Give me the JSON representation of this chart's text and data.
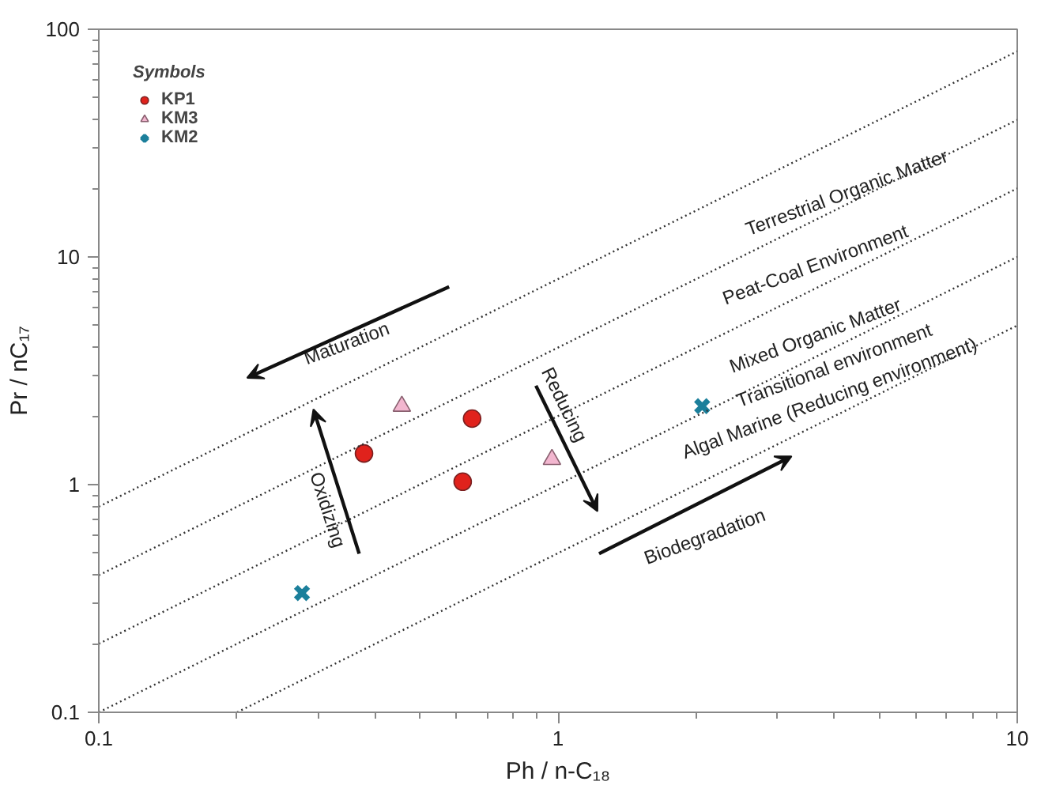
{
  "chart_data": {
    "type": "scatter",
    "xlabel": "Ph / n-C₁₈",
    "ylabel": "Pr / nC₁₇",
    "legend_title": "Symbols",
    "log": "xy",
    "grid": false,
    "legend": "top left",
    "xlim": [
      0.1,
      10
    ],
    "ylim": [
      0.1,
      100
    ],
    "xticks": [
      0.1,
      1,
      10
    ],
    "yticks": [
      0.1,
      1,
      10,
      100
    ],
    "series": [
      {
        "name": "KP1",
        "marker": "circle",
        "color": "#e0221c",
        "x": [
          0.378,
          0.65,
          0.62
        ],
        "values": [
          1.37,
          1.95,
          1.03
        ]
      },
      {
        "name": "KM3",
        "marker": "triangle",
        "color": "#f2b6cf",
        "x": [
          0.457,
          0.97
        ],
        "values": [
          2.21,
          1.29
        ]
      },
      {
        "name": "KM2",
        "marker": "cross",
        "color": "#1b7f9b",
        "x": [
          0.277,
          2.06
        ],
        "values": [
          0.334,
          2.21
        ]
      },
      {
        "type": "line",
        "color": "#333333",
        "line_style": "dotted",
        "marker": "none",
        "x": [
          0.2,
          10
        ],
        "values": [
          0.1,
          5
        ]
      },
      {
        "type": "line",
        "color": "#333333",
        "line_style": "dotted",
        "marker": "none",
        "x": [
          0.1,
          10
        ],
        "values": [
          0.1,
          10
        ]
      },
      {
        "type": "line",
        "color": "#333333",
        "line_style": "dotted",
        "marker": "none",
        "x": [
          0.1,
          10
        ],
        "values": [
          0.2,
          20
        ]
      },
      {
        "type": "line",
        "color": "#333333",
        "line_style": "dotted",
        "marker": "none",
        "x": [
          0.1,
          10
        ],
        "values": [
          0.4,
          40
        ]
      },
      {
        "type": "line",
        "color": "#333333",
        "line_style": "dotted",
        "marker": "none",
        "x": [
          0.1,
          10
        ],
        "values": [
          0.8,
          80
        ]
      }
    ],
    "annotations": [
      "Terrestrial Organic Matter",
      "Peat-Coal Environment",
      "Mixed Organic Matter",
      "Transitional environment",
      "Algal Marine (Reducing environment)",
      "Maturation",
      "Oxidizing",
      "Reducing",
      "Biodegradation"
    ]
  }
}
